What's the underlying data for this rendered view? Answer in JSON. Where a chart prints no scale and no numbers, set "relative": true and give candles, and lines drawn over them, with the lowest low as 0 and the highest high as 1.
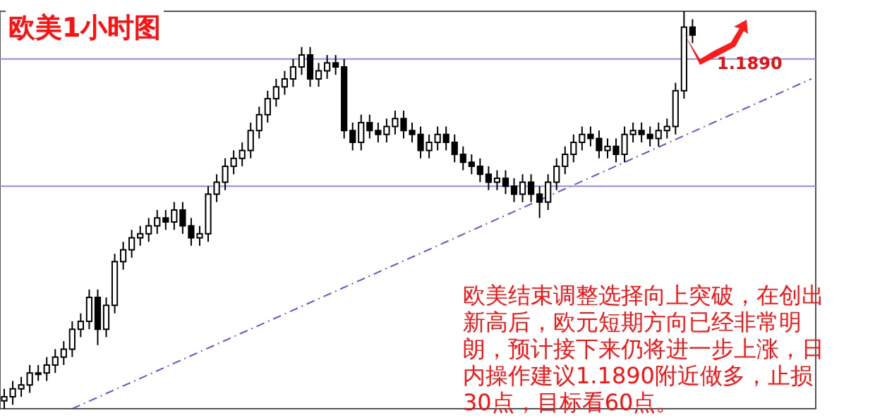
{
  "chart_data": {
    "type": "candlestick",
    "title": "欧美1小时图",
    "relative": true,
    "categories": [
      null,
      null,
      null,
      null,
      null,
      null,
      null,
      null,
      null,
      null,
      null,
      null,
      null,
      null,
      null,
      null,
      null,
      null,
      null,
      null,
      null,
      null,
      null,
      null,
      null,
      null,
      null,
      null,
      null,
      null,
      null,
      null,
      null,
      null,
      null,
      null,
      null,
      null,
      null,
      null,
      null,
      null,
      null,
      null,
      null,
      null,
      null,
      null,
      null,
      null,
      null,
      null,
      null,
      null,
      null,
      null,
      null,
      null,
      null,
      null,
      null,
      null,
      null,
      null,
      null,
      null,
      null,
      null,
      null,
      null,
      null,
      null,
      null,
      null,
      null,
      null,
      null,
      null,
      null,
      null,
      null,
      null,
      null,
      null,
      null,
      null,
      null,
      null,
      null,
      null,
      null,
      null,
      null,
      null,
      null,
      null
    ],
    "ohlc": [
      [
        0.02,
        0.05,
        0,
        0.03
      ],
      [
        0.03,
        0.07,
        0.01,
        0.05
      ],
      [
        0.05,
        0.08,
        0.03,
        0.06
      ],
      [
        0.06,
        0.11,
        0.04,
        0.09
      ],
      [
        0.09,
        0.11,
        0.07,
        0.09
      ],
      [
        0.09,
        0.13,
        0.07,
        0.11
      ],
      [
        0.11,
        0.15,
        0.09,
        0.13
      ],
      [
        0.13,
        0.17,
        0.11,
        0.15
      ],
      [
        0.15,
        0.22,
        0.13,
        0.2
      ],
      [
        0.2,
        0.24,
        0.18,
        0.22
      ],
      [
        0.22,
        0.3,
        0.2,
        0.28
      ],
      [
        0.28,
        0.3,
        0.16,
        0.2
      ],
      [
        0.2,
        0.28,
        0.18,
        0.26
      ],
      [
        0.26,
        0.39,
        0.24,
        0.37
      ],
      [
        0.37,
        0.42,
        0.35,
        0.4
      ],
      [
        0.4,
        0.45,
        0.38,
        0.43
      ],
      [
        0.43,
        0.46,
        0.41,
        0.44
      ],
      [
        0.44,
        0.48,
        0.42,
        0.46
      ],
      [
        0.46,
        0.5,
        0.44,
        0.48
      ],
      [
        0.48,
        0.5,
        0.45,
        0.47
      ],
      [
        0.47,
        0.52,
        0.45,
        0.5
      ],
      [
        0.5,
        0.52,
        0.44,
        0.46
      ],
      [
        0.46,
        0.48,
        0.41,
        0.43
      ],
      [
        0.43,
        0.46,
        0.41,
        0.44
      ],
      [
        0.44,
        0.56,
        0.42,
        0.54
      ],
      [
        0.54,
        0.59,
        0.52,
        0.57
      ],
      [
        0.57,
        0.63,
        0.55,
        0.61
      ],
      [
        0.61,
        0.65,
        0.59,
        0.63
      ],
      [
        0.63,
        0.67,
        0.61,
        0.65
      ],
      [
        0.65,
        0.72,
        0.63,
        0.7
      ],
      [
        0.7,
        0.76,
        0.68,
        0.74
      ],
      [
        0.74,
        0.8,
        0.72,
        0.78
      ],
      [
        0.78,
        0.83,
        0.76,
        0.81
      ],
      [
        0.81,
        0.85,
        0.79,
        0.83
      ],
      [
        0.83,
        0.88,
        0.81,
        0.86
      ],
      [
        0.86,
        0.91,
        0.84,
        0.89
      ],
      [
        0.89,
        0.91,
        0.81,
        0.83
      ],
      [
        0.83,
        0.87,
        0.81,
        0.85
      ],
      [
        0.85,
        0.89,
        0.83,
        0.87
      ],
      [
        0.87,
        0.89,
        0.84,
        0.86
      ],
      [
        0.86,
        0.88,
        0.68,
        0.7
      ],
      [
        0.7,
        0.72,
        0.65,
        0.67
      ],
      [
        0.67,
        0.74,
        0.65,
        0.72
      ],
      [
        0.72,
        0.74,
        0.68,
        0.7
      ],
      [
        0.7,
        0.72,
        0.67,
        0.69
      ],
      [
        0.69,
        0.73,
        0.67,
        0.71
      ],
      [
        0.71,
        0.75,
        0.69,
        0.73
      ],
      [
        0.73,
        0.75,
        0.68,
        0.7
      ],
      [
        0.7,
        0.72,
        0.67,
        0.69
      ],
      [
        0.69,
        0.71,
        0.63,
        0.65
      ],
      [
        0.65,
        0.69,
        0.63,
        0.67
      ],
      [
        0.67,
        0.71,
        0.65,
        0.69
      ],
      [
        0.69,
        0.71,
        0.65,
        0.67
      ],
      [
        0.67,
        0.69,
        0.62,
        0.64
      ],
      [
        0.64,
        0.66,
        0.6,
        0.62
      ],
      [
        0.62,
        0.64,
        0.59,
        0.61
      ],
      [
        0.61,
        0.63,
        0.57,
        0.59
      ],
      [
        0.59,
        0.61,
        0.55,
        0.57
      ],
      [
        0.57,
        0.6,
        0.55,
        0.58
      ],
      [
        0.58,
        0.6,
        0.54,
        0.56
      ],
      [
        0.56,
        0.58,
        0.52,
        0.54
      ],
      [
        0.54,
        0.59,
        0.52,
        0.57
      ],
      [
        0.57,
        0.59,
        0.52,
        0.54
      ],
      [
        0.54,
        0.56,
        0.48,
        0.52
      ],
      [
        0.52,
        0.59,
        0.5,
        0.57
      ],
      [
        0.57,
        0.63,
        0.55,
        0.61
      ],
      [
        0.61,
        0.66,
        0.59,
        0.64
      ],
      [
        0.64,
        0.69,
        0.62,
        0.67
      ],
      [
        0.67,
        0.71,
        0.65,
        0.69
      ],
      [
        0.69,
        0.71,
        0.66,
        0.68
      ],
      [
        0.68,
        0.7,
        0.63,
        0.65
      ],
      [
        0.65,
        0.68,
        0.63,
        0.66
      ],
      [
        0.66,
        0.68,
        0.62,
        0.64
      ],
      [
        0.64,
        0.71,
        0.62,
        0.69
      ],
      [
        0.69,
        0.72,
        0.67,
        0.7
      ],
      [
        0.7,
        0.72,
        0.67,
        0.69
      ],
      [
        0.69,
        0.71,
        0.66,
        0.68
      ],
      [
        0.68,
        0.72,
        0.66,
        0.7
      ],
      [
        0.7,
        0.73,
        0.68,
        0.71
      ],
      [
        0.71,
        0.82,
        0.69,
        0.8
      ],
      [
        0.8,
        1,
        0.78,
        0.96
      ],
      [
        0.96,
        0.98,
        0.92,
        0.94
      ],
      null,
      null,
      null,
      null,
      null,
      null,
      null,
      null,
      null,
      null,
      null,
      null,
      null,
      null
    ],
    "series": [
      {
        "type": "line",
        "color": "#5a5ad8",
        "line_style": "dashed",
        "values": [
          null,
          null,
          null,
          null,
          null,
          null,
          null,
          null,
          0,
          null,
          null,
          null,
          null,
          null,
          null,
          null,
          null,
          null,
          null,
          null,
          null,
          null,
          null,
          null,
          null,
          null,
          null,
          null,
          null,
          null,
          null,
          null,
          null,
          null,
          null,
          null,
          null,
          null,
          null,
          null,
          null,
          null,
          null,
          null,
          null,
          null,
          null,
          null,
          null,
          null,
          null,
          null,
          null,
          null,
          null,
          null,
          null,
          null,
          null,
          null,
          null,
          null,
          null,
          null,
          null,
          null,
          null,
          null,
          null,
          null,
          null,
          null,
          null,
          null,
          null,
          null,
          null,
          null,
          null,
          null,
          null,
          null,
          null,
          null,
          null,
          null,
          null,
          null,
          null,
          null,
          null,
          null,
          null,
          null,
          null,
          0.83
        ]
      }
    ],
    "ref_lines": [
      {
        "axis": "y",
        "value": 0.88,
        "color": "#8c8cf0"
      },
      {
        "axis": "y",
        "value": 0.56,
        "color": "#8c8cf0"
      }
    ],
    "annotations": [
      "1.1890",
      "欧美结束调整选择向上突破，在创出新高后，欧元短期方向已经非常明朗，预计接下来仍将进一步上涨，日内操作建议1.1890附近做多，止损30点，目标看60点。"
    ],
    "legend": false
  }
}
